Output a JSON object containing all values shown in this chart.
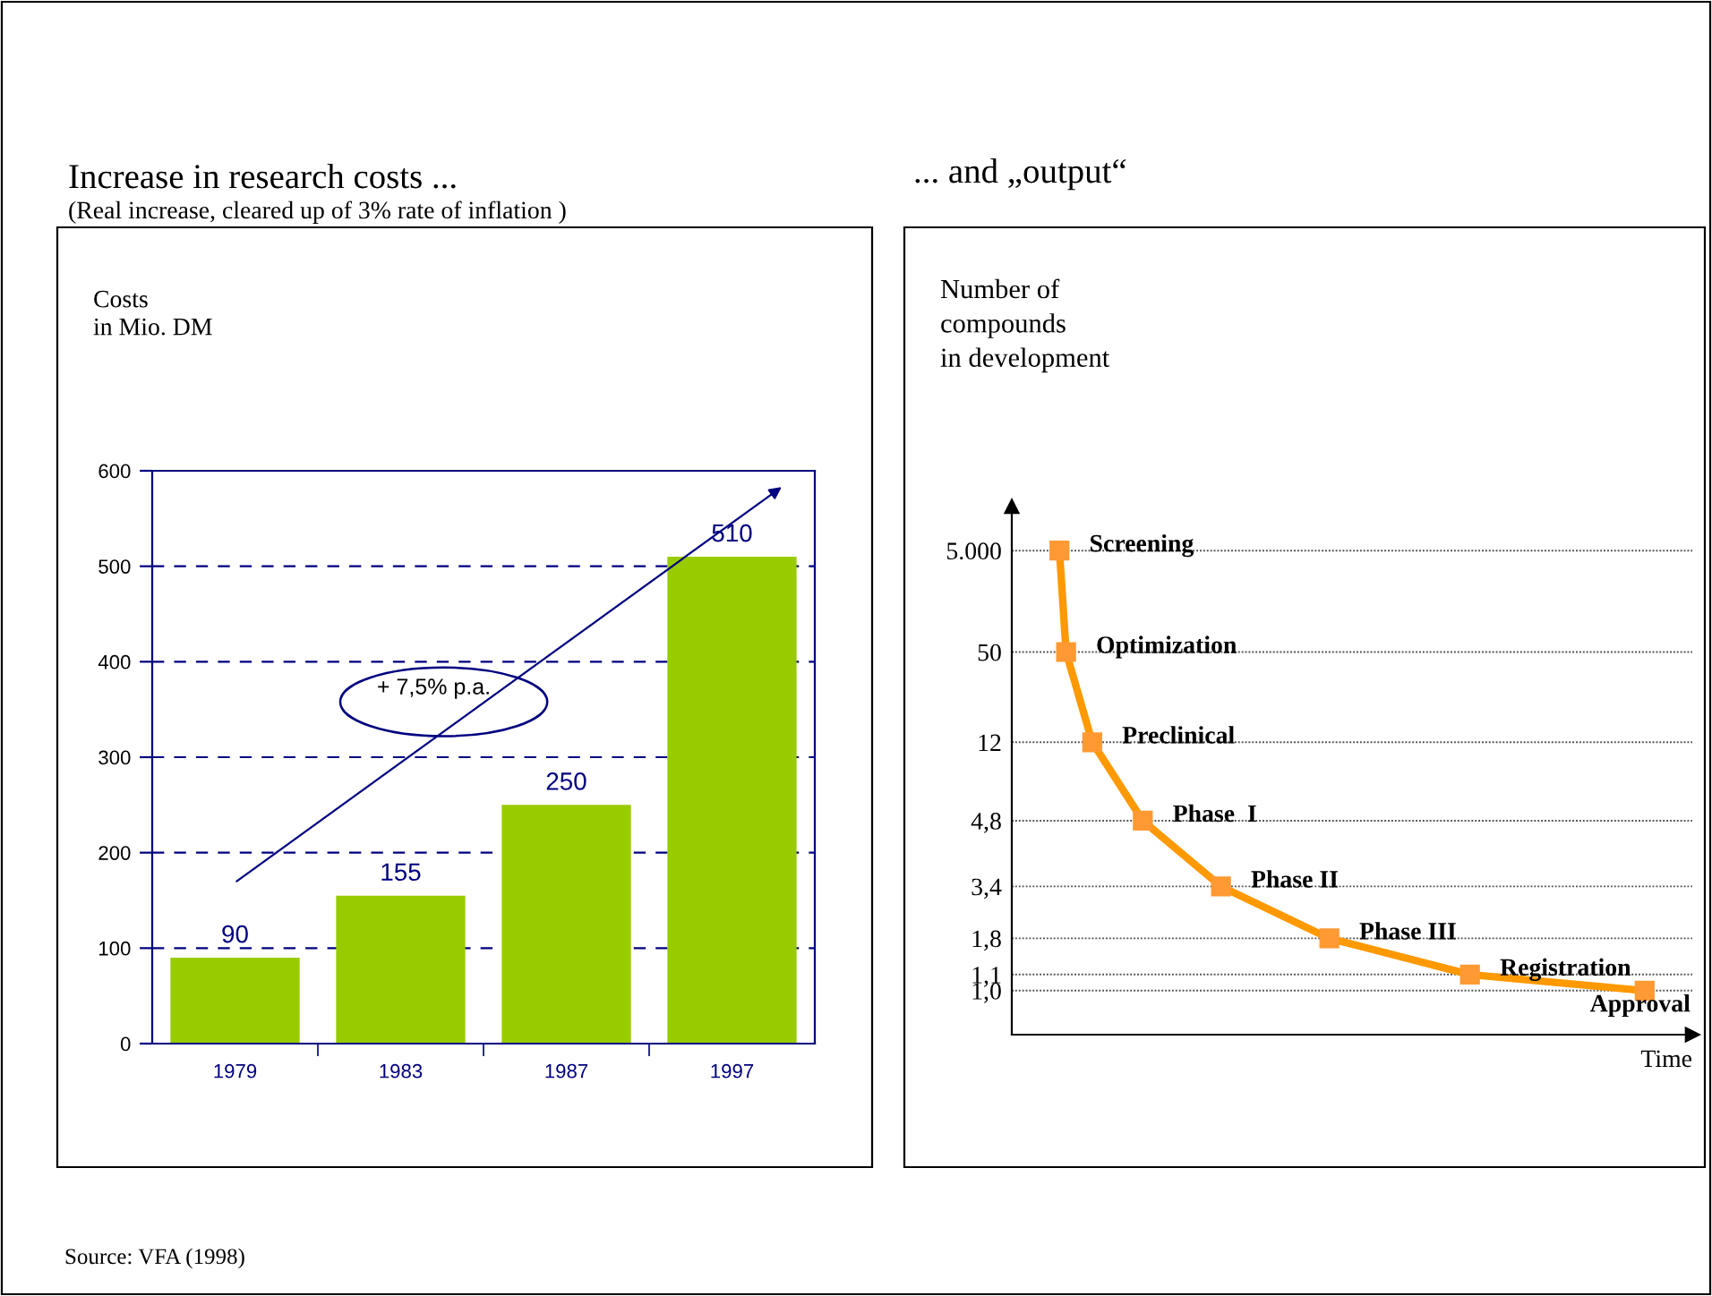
{
  "chart_data": [
    {
      "type": "bar",
      "title": "Increase in research costs ...",
      "subtitle": "(Real increase, cleared up of 3% rate of inflation )",
      "ylabel": "Costs\nin Mio. DM",
      "categories": [
        "1979",
        "1983",
        "1987",
        "1997"
      ],
      "values": [
        90,
        155,
        250,
        510
      ],
      "color": "#99cc00",
      "data_labels": true,
      "ylim": [
        0,
        600
      ],
      "yticks": [
        0,
        100,
        200,
        300,
        400,
        500,
        600
      ],
      "grid": "y",
      "annotations": [
        "+ 7,5% p.a."
      ]
    },
    {
      "type": "other",
      "title": "... and „output“",
      "ylabel": "Number of\ncompounds\nin development",
      "xlabel": "Time",
      "categories": [
        "Screening",
        "Optimization",
        "Preclinical",
        "Phase  I",
        "Phase II",
        "Phase III",
        "Registration",
        "Approval"
      ],
      "values": [
        5000,
        50,
        12,
        4.8,
        3.4,
        1.8,
        1.1,
        1.0
      ],
      "value_labels": [
        "5.000",
        "50",
        "12",
        "4,8",
        "3,4",
        "1,8",
        "1,1",
        "1,0"
      ],
      "color": "#ff9900",
      "annotations": [
        "Source: VFA (1998)"
      ]
    }
  ]
}
